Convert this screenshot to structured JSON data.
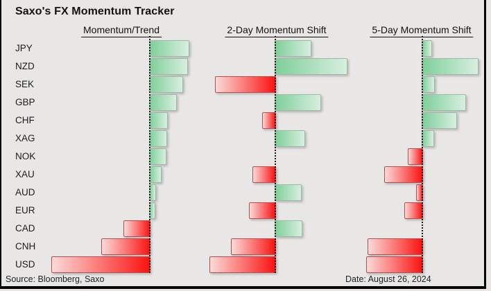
{
  "title": "Saxo's FX Momentum Tracker",
  "source": "Source: Bloomberg, Saxo",
  "date_label": "Date: August 26, 2024",
  "colors": {
    "background": "#e9e7e6",
    "text": "#111111",
    "frame": "#000000",
    "baseline": "#1a1a1a",
    "positive_gradient_start": "#7ecf9a",
    "positive_gradient_end": "#d8efe0",
    "positive_border": "#a0b8a6",
    "negative_gradient_start": "#fbdad8",
    "negative_gradient_end": "#fb1210",
    "negative_border": "#b25050"
  },
  "chart_data": {
    "type": "bar",
    "orientation": "horizontal",
    "title": "Saxo's FX Momentum Tracker",
    "categories": [
      "JPY",
      "NZD",
      "SEK",
      "GBP",
      "CHF",
      "XAG",
      "NOK",
      "XAU",
      "AUD",
      "EUR",
      "CAD",
      "CNH",
      "USD"
    ],
    "series": [
      {
        "name": "Momentum/Trend",
        "values": [
          0.4,
          0.38,
          0.33,
          0.27,
          0.18,
          0.17,
          0.16,
          0.11,
          0.06,
          0.05,
          -0.26,
          -0.49,
          -1.0
        ]
      },
      {
        "name": "2-Day Momentum Shift",
        "values": [
          0.36,
          0.73,
          -0.61,
          0.46,
          -0.13,
          0.3,
          0.0,
          -0.23,
          0.26,
          -0.26,
          0.27,
          -0.45,
          -0.67
        ]
      },
      {
        "name": "5-Day Momentum Shift",
        "values": [
          0.09,
          0.57,
          0.12,
          0.44,
          0.35,
          0.11,
          -0.14,
          -0.38,
          -0.06,
          -0.18,
          0.0,
          -0.55,
          -0.57
        ]
      }
    ],
    "value_range": [
      -1,
      1
    ],
    "positive_color_meaning": "positive momentum (green, bars extend right of dotted baseline)",
    "negative_color_meaning": "negative momentum (red, bars extend left of dotted baseline)",
    "gridlines": false,
    "legend": "none",
    "baseline_style": "vertical dotted line per panel"
  }
}
